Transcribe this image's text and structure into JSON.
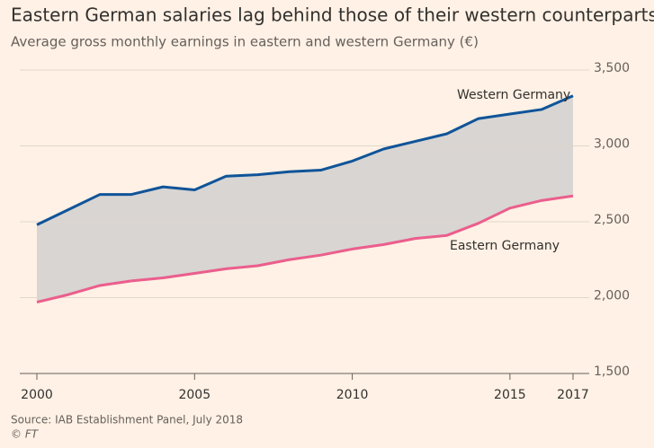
{
  "chart_data": {
    "type": "line",
    "title": "Eastern German salaries lag behind those of their western counterparts",
    "subtitle": "Average gross monthly earnings in eastern and western Germany (€)",
    "source": "Source: IAB Establishment Panel, July 2018",
    "credit": "© FT",
    "x": [
      2000,
      2001,
      2002,
      2003,
      2004,
      2005,
      2006,
      2007,
      2008,
      2009,
      2010,
      2011,
      2012,
      2013,
      2014,
      2015,
      2016,
      2017
    ],
    "series": [
      {
        "name": "Western Germany",
        "color": "#0f5499",
        "values": [
          2480,
          2580,
          2680,
          2680,
          2730,
          2710,
          2800,
          2810,
          2830,
          2840,
          2900,
          2980,
          3030,
          3080,
          3180,
          3210,
          3240,
          3330
        ]
      },
      {
        "name": "Eastern Germany",
        "color": "#eb5e8d",
        "values": [
          1970,
          2020,
          2080,
          2110,
          2130,
          2160,
          2190,
          2210,
          2250,
          2280,
          2320,
          2350,
          2390,
          2410,
          2490,
          2590,
          2640,
          2670
        ]
      }
    ],
    "fill_between": true,
    "fill_color": "#d8d5d2",
    "xlim": [
      2000,
      2017
    ],
    "xticks": [
      2000,
      2005,
      2010,
      2015,
      2017
    ],
    "ylim": [
      1500,
      3500
    ],
    "yticks": [
      {
        "value": 1500,
        "label": "1,500"
      },
      {
        "value": 2000,
        "label": "2,000"
      },
      {
        "value": 2500,
        "label": "2,500"
      },
      {
        "value": 3000,
        "label": "3,000"
      },
      {
        "value": 3500,
        "label": "3,500"
      }
    ],
    "grid": true
  }
}
